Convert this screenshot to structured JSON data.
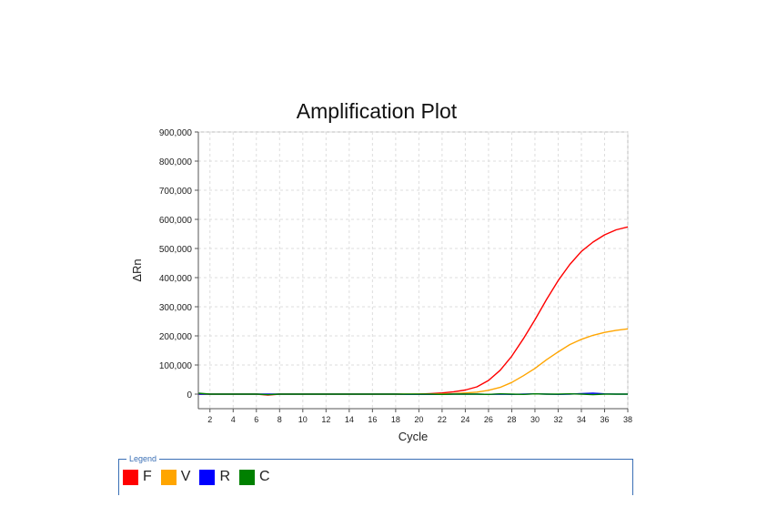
{
  "chart_data": {
    "type": "line",
    "title": "Amplification Plot",
    "xlabel": "Cycle",
    "ylabel": "ΔRn",
    "xlim": [
      1,
      38
    ],
    "ylim": [
      -50000,
      900000
    ],
    "xticks": [
      2,
      4,
      6,
      8,
      10,
      12,
      14,
      16,
      18,
      20,
      22,
      24,
      26,
      28,
      30,
      32,
      34,
      36,
      38
    ],
    "yticks": [
      0,
      100000,
      200000,
      300000,
      400000,
      500000,
      600000,
      700000,
      800000,
      900000
    ],
    "ytick_labels": [
      "0",
      "100,000",
      "200,000",
      "300,000",
      "400,000",
      "500,000",
      "600,000",
      "700,000",
      "800,000",
      "900,000"
    ],
    "grid": true,
    "legend_title": "Legend",
    "legend_position": "bottom",
    "series": [
      {
        "name": "F",
        "color": "#ff0000",
        "x": [
          1,
          2,
          3,
          4,
          5,
          6,
          7,
          8,
          9,
          10,
          11,
          12,
          13,
          14,
          15,
          16,
          17,
          18,
          19,
          20,
          21,
          22,
          23,
          24,
          25,
          26,
          27,
          28,
          29,
          30,
          31,
          32,
          33,
          34,
          35,
          36,
          37,
          38
        ],
        "values": [
          0,
          0,
          0,
          0,
          0,
          0,
          -3000,
          0,
          0,
          0,
          0,
          0,
          0,
          0,
          0,
          0,
          0,
          0,
          -1000,
          0,
          2000,
          4000,
          8000,
          14000,
          25000,
          47000,
          82000,
          130000,
          190000,
          255000,
          325000,
          390000,
          445000,
          490000,
          522000,
          547000,
          564000,
          574000
        ]
      },
      {
        "name": "V",
        "color": "#ffa500",
        "x": [
          1,
          2,
          3,
          4,
          5,
          6,
          7,
          8,
          9,
          10,
          11,
          12,
          13,
          14,
          15,
          16,
          17,
          18,
          19,
          20,
          21,
          22,
          23,
          24,
          25,
          26,
          27,
          28,
          29,
          30,
          31,
          32,
          33,
          34,
          35,
          36,
          37,
          38
        ],
        "values": [
          0,
          0,
          0,
          0,
          0,
          0,
          -1000,
          0,
          0,
          0,
          0,
          0,
          0,
          0,
          0,
          0,
          0,
          0,
          0,
          0,
          0,
          1000,
          2000,
          4000,
          7000,
          13000,
          23000,
          40000,
          63000,
          88000,
          118000,
          145000,
          170000,
          188000,
          202000,
          212000,
          219000,
          224000
        ]
      },
      {
        "name": "R",
        "color": "#0000ff",
        "x": [
          1,
          2,
          3,
          4,
          5,
          6,
          7,
          8,
          9,
          10,
          11,
          12,
          13,
          14,
          15,
          16,
          17,
          18,
          19,
          20,
          21,
          22,
          23,
          24,
          25,
          26,
          27,
          28,
          29,
          30,
          31,
          32,
          33,
          34,
          35,
          36,
          37,
          38
        ],
        "values": [
          0,
          0,
          0,
          0,
          0,
          0,
          0,
          0,
          0,
          0,
          0,
          0,
          0,
          0,
          0,
          0,
          0,
          0,
          -1000,
          -1000,
          -1000,
          -1000,
          0,
          0,
          0,
          -1000,
          0,
          -1000,
          0,
          1000,
          0,
          -1000,
          0,
          2000,
          3000,
          1000,
          0,
          0
        ]
      },
      {
        "name": "C",
        "color": "#008000",
        "x": [
          1,
          2,
          3,
          4,
          5,
          6,
          7,
          8,
          9,
          10,
          11,
          12,
          13,
          14,
          15,
          16,
          17,
          18,
          19,
          20,
          21,
          22,
          23,
          24,
          25,
          26,
          27,
          28,
          29,
          30,
          31,
          32,
          33,
          34,
          35,
          36,
          37,
          38
        ],
        "values": [
          3000,
          0,
          0,
          0,
          0,
          0,
          -2000,
          0,
          0,
          0,
          0,
          0,
          0,
          0,
          0,
          0,
          0,
          0,
          0,
          0,
          0,
          -1000,
          0,
          0,
          0,
          -1000,
          1000,
          0,
          -1000,
          1000,
          0,
          0,
          1000,
          0,
          -2000,
          0,
          0,
          0
        ]
      }
    ]
  }
}
